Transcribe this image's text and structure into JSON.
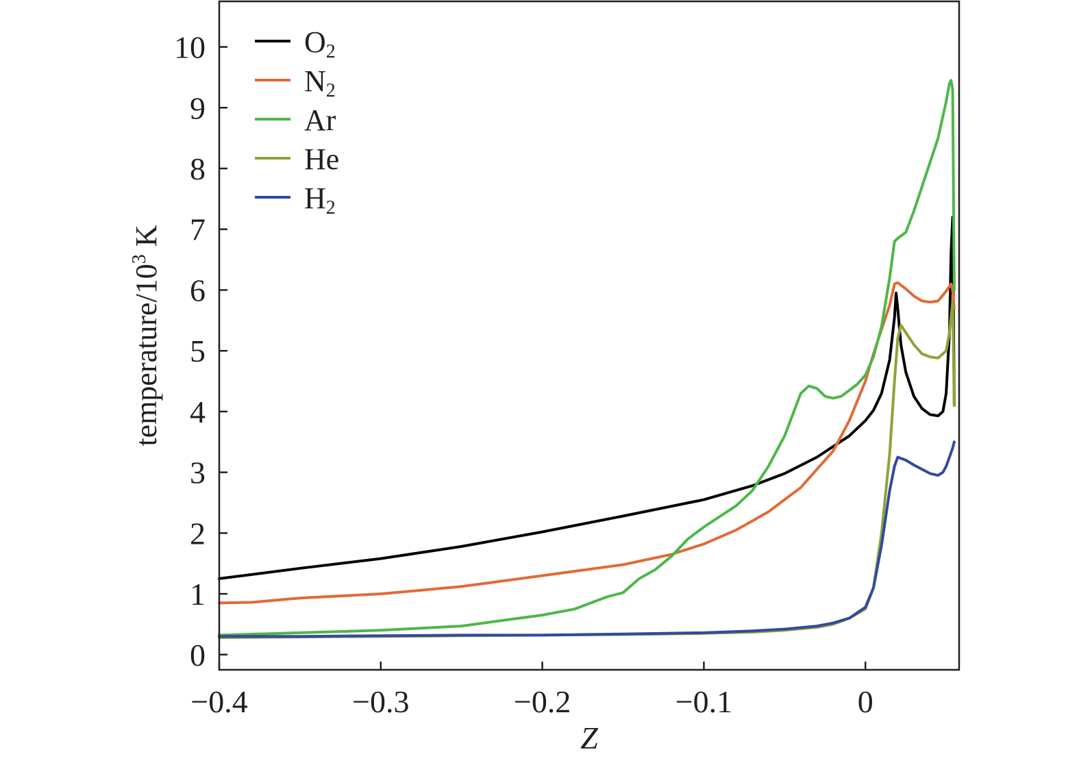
{
  "chart_data": {
    "type": "line",
    "xlabel": "Z",
    "ylabel_main": "temperature/10",
    "ylabel_sup": "3",
    "ylabel_unit": " K",
    "xlim": [
      -0.4,
      0.058
    ],
    "ylim": [
      -0.25,
      10.75
    ],
    "x_ticks": [
      -0.4,
      -0.3,
      -0.2,
      -0.1,
      0
    ],
    "x_tick_labels": [
      "−0.4",
      "−0.3",
      "−0.2",
      "−0.1",
      "0"
    ],
    "y_ticks": [
      0,
      1,
      2,
      3,
      4,
      5,
      6,
      7,
      8,
      9,
      10
    ],
    "y_tick_labels": [
      "0",
      "1",
      "2",
      "3",
      "4",
      "5",
      "6",
      "7",
      "8",
      "9",
      "10"
    ],
    "grid": false,
    "legend_position": "top-left",
    "series": [
      {
        "name": "O",
        "name_sub": "2",
        "color": "#000000",
        "points": [
          [
            -0.4,
            1.25
          ],
          [
            -0.35,
            1.42
          ],
          [
            -0.3,
            1.58
          ],
          [
            -0.25,
            1.78
          ],
          [
            -0.2,
            2.02
          ],
          [
            -0.15,
            2.28
          ],
          [
            -0.1,
            2.55
          ],
          [
            -0.07,
            2.78
          ],
          [
            -0.05,
            2.98
          ],
          [
            -0.03,
            3.25
          ],
          [
            -0.01,
            3.6
          ],
          [
            0.0,
            3.85
          ],
          [
            0.005,
            4.02
          ],
          [
            0.01,
            4.3
          ],
          [
            0.015,
            4.85
          ],
          [
            0.018,
            5.55
          ],
          [
            0.019,
            5.95
          ],
          [
            0.02,
            5.7
          ],
          [
            0.022,
            5.1
          ],
          [
            0.025,
            4.65
          ],
          [
            0.03,
            4.25
          ],
          [
            0.035,
            4.05
          ],
          [
            0.04,
            3.95
          ],
          [
            0.045,
            3.93
          ],
          [
            0.048,
            4.0
          ],
          [
            0.05,
            4.3
          ],
          [
            0.052,
            5.3
          ],
          [
            0.053,
            6.6
          ],
          [
            0.054,
            7.2
          ],
          [
            0.055,
            4.1
          ]
        ]
      },
      {
        "name": "N",
        "name_sub": "2",
        "color": "#e26a36",
        "points": [
          [
            -0.4,
            0.85
          ],
          [
            -0.38,
            0.86
          ],
          [
            -0.35,
            0.93
          ],
          [
            -0.3,
            1.0
          ],
          [
            -0.25,
            1.12
          ],
          [
            -0.2,
            1.3
          ],
          [
            -0.15,
            1.48
          ],
          [
            -0.12,
            1.65
          ],
          [
            -0.1,
            1.82
          ],
          [
            -0.08,
            2.05
          ],
          [
            -0.06,
            2.35
          ],
          [
            -0.04,
            2.75
          ],
          [
            -0.02,
            3.35
          ],
          [
            -0.01,
            3.85
          ],
          [
            0.0,
            4.5
          ],
          [
            0.005,
            4.95
          ],
          [
            0.01,
            5.35
          ],
          [
            0.015,
            5.75
          ],
          [
            0.018,
            6.1
          ],
          [
            0.02,
            6.12
          ],
          [
            0.025,
            6.02
          ],
          [
            0.03,
            5.9
          ],
          [
            0.035,
            5.82
          ],
          [
            0.04,
            5.8
          ],
          [
            0.045,
            5.82
          ],
          [
            0.05,
            5.98
          ],
          [
            0.053,
            6.1
          ],
          [
            0.054,
            6.0
          ],
          [
            0.055,
            5.7
          ]
        ]
      },
      {
        "name": "Ar",
        "name_sub": "",
        "color": "#4db848",
        "points": [
          [
            -0.4,
            0.32
          ],
          [
            -0.35,
            0.36
          ],
          [
            -0.3,
            0.4
          ],
          [
            -0.25,
            0.47
          ],
          [
            -0.22,
            0.58
          ],
          [
            -0.2,
            0.65
          ],
          [
            -0.18,
            0.75
          ],
          [
            -0.16,
            0.95
          ],
          [
            -0.15,
            1.02
          ],
          [
            -0.14,
            1.25
          ],
          [
            -0.13,
            1.4
          ],
          [
            -0.12,
            1.62
          ],
          [
            -0.11,
            1.9
          ],
          [
            -0.1,
            2.1
          ],
          [
            -0.08,
            2.45
          ],
          [
            -0.07,
            2.7
          ],
          [
            -0.06,
            3.1
          ],
          [
            -0.05,
            3.6
          ],
          [
            -0.04,
            4.3
          ],
          [
            -0.035,
            4.42
          ],
          [
            -0.03,
            4.38
          ],
          [
            -0.025,
            4.25
          ],
          [
            -0.02,
            4.22
          ],
          [
            -0.015,
            4.25
          ],
          [
            -0.01,
            4.35
          ],
          [
            -0.005,
            4.45
          ],
          [
            0.0,
            4.6
          ],
          [
            0.005,
            4.9
          ],
          [
            0.01,
            5.4
          ],
          [
            0.015,
            6.2
          ],
          [
            0.018,
            6.8
          ],
          [
            0.02,
            6.85
          ],
          [
            0.025,
            6.95
          ],
          [
            0.03,
            7.3
          ],
          [
            0.035,
            7.7
          ],
          [
            0.04,
            8.1
          ],
          [
            0.045,
            8.5
          ],
          [
            0.05,
            9.1
          ],
          [
            0.052,
            9.4
          ],
          [
            0.053,
            9.45
          ],
          [
            0.054,
            9.3
          ],
          [
            0.055,
            6.0
          ]
        ]
      },
      {
        "name": "He",
        "name_sub": "",
        "color": "#8ea33b",
        "points": [
          [
            -0.4,
            0.28
          ],
          [
            -0.35,
            0.29
          ],
          [
            -0.3,
            0.3
          ],
          [
            -0.25,
            0.31
          ],
          [
            -0.2,
            0.32
          ],
          [
            -0.15,
            0.33
          ],
          [
            -0.1,
            0.35
          ],
          [
            -0.07,
            0.37
          ],
          [
            -0.05,
            0.4
          ],
          [
            -0.03,
            0.45
          ],
          [
            -0.02,
            0.5
          ],
          [
            -0.01,
            0.6
          ],
          [
            0.0,
            0.75
          ],
          [
            0.005,
            1.1
          ],
          [
            0.01,
            2.0
          ],
          [
            0.015,
            3.3
          ],
          [
            0.018,
            4.5
          ],
          [
            0.02,
            5.2
          ],
          [
            0.022,
            5.42
          ],
          [
            0.025,
            5.3
          ],
          [
            0.03,
            5.1
          ],
          [
            0.035,
            4.95
          ],
          [
            0.04,
            4.9
          ],
          [
            0.045,
            4.88
          ],
          [
            0.05,
            5.0
          ],
          [
            0.052,
            5.3
          ],
          [
            0.054,
            5.8
          ],
          [
            0.055,
            4.1
          ]
        ]
      },
      {
        "name": "H",
        "name_sub": "2",
        "color": "#34499e",
        "points": [
          [
            -0.4,
            0.3
          ],
          [
            -0.35,
            0.3
          ],
          [
            -0.3,
            0.31
          ],
          [
            -0.25,
            0.32
          ],
          [
            -0.2,
            0.32
          ],
          [
            -0.15,
            0.34
          ],
          [
            -0.1,
            0.36
          ],
          [
            -0.07,
            0.39
          ],
          [
            -0.05,
            0.42
          ],
          [
            -0.03,
            0.47
          ],
          [
            -0.02,
            0.52
          ],
          [
            -0.01,
            0.6
          ],
          [
            0.0,
            0.78
          ],
          [
            0.005,
            1.1
          ],
          [
            0.01,
            1.8
          ],
          [
            0.015,
            2.7
          ],
          [
            0.018,
            3.1
          ],
          [
            0.02,
            3.25
          ],
          [
            0.025,
            3.2
          ],
          [
            0.03,
            3.12
          ],
          [
            0.035,
            3.05
          ],
          [
            0.04,
            2.98
          ],
          [
            0.045,
            2.95
          ],
          [
            0.048,
            3.0
          ],
          [
            0.05,
            3.1
          ],
          [
            0.052,
            3.25
          ],
          [
            0.054,
            3.4
          ],
          [
            0.055,
            3.5
          ]
        ]
      }
    ]
  }
}
